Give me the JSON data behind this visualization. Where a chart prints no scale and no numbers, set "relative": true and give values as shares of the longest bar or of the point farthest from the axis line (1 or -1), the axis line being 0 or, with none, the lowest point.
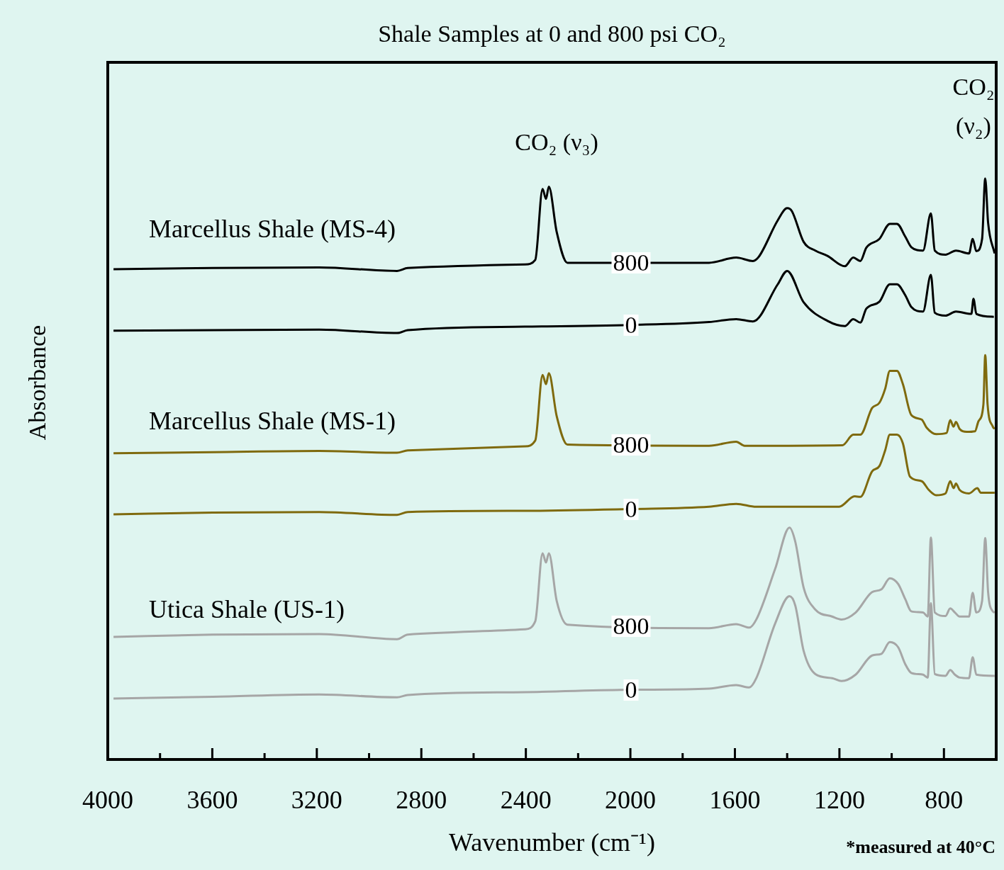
{
  "chart_data": {
    "type": "line",
    "title": "Shale Samples at 0 and 800 psi CO₂",
    "xlabel": "Wavenumber (cm⁻¹)",
    "ylabel": "Absorbance",
    "relative": true,
    "xlim": [
      4000,
      600
    ],
    "xticks": [
      4000,
      {
        "value": 3800,
        "label": null
      },
      3600,
      {
        "value": 3400,
        "label": null
      },
      3200,
      {
        "value": 3000,
        "label": null
      },
      2800,
      {
        "value": 2600,
        "label": null
      },
      2400,
      {
        "value": 2200,
        "label": null
      },
      2000,
      {
        "value": 1800,
        "label": null
      },
      1600,
      {
        "value": 1400,
        "label": null
      },
      1200,
      {
        "value": 1000,
        "label": null
      },
      800
    ],
    "tick_labels": "x",
    "series": [
      {
        "name": "800",
        "color": "#000000",
        "x": [
          3978,
          3598,
          3191,
          2893,
          2852,
          2404,
          2364,
          2336,
          2323,
          2312,
          2282,
          2241,
          1699,
          1595,
          1531,
          1509,
          1436,
          1400,
          1382,
          1337,
          1292,
          1246,
          1179,
          1147,
          1120,
          1097,
          1047,
          1007,
          980,
          948,
          925,
          880,
          850,
          835,
          794,
          754,
          704,
          690,
          676,
          654,
          642,
          631,
          606
        ],
        "values": [
          0.844,
          0.846,
          0.847,
          0.841,
          0.846,
          0.852,
          0.86,
          0.982,
          0.965,
          0.986,
          0.908,
          0.855,
          0.855,
          0.864,
          0.858,
          0.865,
          0.928,
          0.949,
          0.944,
          0.891,
          0.876,
          0.867,
          0.849,
          0.864,
          0.858,
          0.881,
          0.896,
          0.922,
          0.922,
          0.9,
          0.882,
          0.876,
          0.94,
          0.876,
          0.869,
          0.876,
          0.871,
          0.896,
          0.875,
          0.896,
          1,
          0.924,
          0.871
        ]
      },
      {
        "name": "0",
        "color": "#000000",
        "x": [
          3978,
          3598,
          3191,
          2893,
          2852,
          2404,
          1997,
          1699,
          1595,
          1531,
          1436,
          1400,
          1337,
          1246,
          1179,
          1147,
          1120,
          1097,
          1047,
          1007,
          980,
          948,
          925,
          880,
          850,
          835,
          794,
          754,
          695,
          687,
          676,
          609
        ],
        "values": [
          0.738,
          0.739,
          0.74,
          0.734,
          0.739,
          0.745,
          0.748,
          0.753,
          0.758,
          0.754,
          0.818,
          0.841,
          0.787,
          0.755,
          0.746,
          0.758,
          0.752,
          0.776,
          0.788,
          0.818,
          0.818,
          0.799,
          0.779,
          0.771,
          0.834,
          0.769,
          0.764,
          0.771,
          0.767,
          0.793,
          0.767,
          0.762
        ]
      },
      {
        "name": "800",
        "color": "#7f6a0e",
        "x": [
          3978,
          3598,
          3191,
          2893,
          2852,
          2404,
          2364,
          2336,
          2323,
          2312,
          2282,
          2241,
          1699,
          1595,
          1563,
          1188,
          1147,
          1120,
          1075,
          1047,
          1025,
          1007,
          980,
          957,
          925,
          885,
          866,
          830,
          790,
          776,
          763,
          754,
          740,
          713,
          681,
          668,
          649,
          642,
          633,
          613,
          606
        ],
        "values": [
          0.527,
          0.529,
          0.531,
          0.528,
          0.532,
          0.539,
          0.549,
          0.662,
          0.646,
          0.665,
          0.591,
          0.542,
          0.54,
          0.547,
          0.54,
          0.541,
          0.559,
          0.559,
          0.605,
          0.614,
          0.638,
          0.669,
          0.669,
          0.646,
          0.593,
          0.585,
          0.571,
          0.56,
          0.562,
          0.584,
          0.573,
          0.581,
          0.569,
          0.564,
          0.565,
          0.582,
          0.611,
          0.696,
          0.611,
          0.573,
          0.569
        ]
      },
      {
        "name": "0",
        "color": "#7f6a0e",
        "x": [
          3978,
          3598,
          3191,
          2893,
          2852,
          2404,
          1997,
          1699,
          1595,
          1518,
          1201,
          1142,
          1120,
          1075,
          1047,
          1025,
          1007,
          980,
          957,
          930,
          885,
          858,
          830,
          794,
          776,
          763,
          754,
          740,
          704,
          672,
          659,
          606
        ],
        "values": [
          0.422,
          0.425,
          0.426,
          0.421,
          0.426,
          0.428,
          0.431,
          0.435,
          0.44,
          0.435,
          0.435,
          0.453,
          0.452,
          0.496,
          0.505,
          0.532,
          0.559,
          0.559,
          0.544,
          0.487,
          0.479,
          0.464,
          0.455,
          0.458,
          0.479,
          0.467,
          0.475,
          0.464,
          0.458,
          0.467,
          0.459,
          0.459
        ]
      },
      {
        "name": "800",
        "color": "#a6a6a6",
        "x": [
          3978,
          3598,
          3191,
          2893,
          2852,
          2404,
          2364,
          2336,
          2323,
          2312,
          2282,
          2241,
          1699,
          1595,
          1545,
          1518,
          1446,
          1391,
          1369,
          1337,
          1292,
          1228,
          1192,
          1138,
          1075,
          1039,
          1007,
          975,
          948,
          925,
          880,
          862,
          850,
          835,
          794,
          776,
          758,
          740,
          704,
          690,
          676,
          654,
          642,
          631,
          613,
          606
        ],
        "values": [
          0.211,
          0.215,
          0.216,
          0.207,
          0.215,
          0.224,
          0.238,
          0.355,
          0.339,
          0.355,
          0.273,
          0.232,
          0.226,
          0.233,
          0.227,
          0.241,
          0.328,
          0.399,
          0.375,
          0.296,
          0.258,
          0.246,
          0.241,
          0.253,
          0.288,
          0.293,
          0.312,
          0.302,
          0.276,
          0.255,
          0.253,
          0.246,
          0.382,
          0.253,
          0.247,
          0.26,
          0.253,
          0.246,
          0.246,
          0.287,
          0.253,
          0.273,
          0.381,
          0.288,
          0.255,
          0.253
        ]
      },
      {
        "name": "0",
        "color": "#a6a6a6",
        "x": [
          3978,
          3598,
          3191,
          2893,
          2852,
          2404,
          1997,
          1699,
          1595,
          1545,
          1518,
          1446,
          1391,
          1369,
          1337,
          1292,
          1228,
          1192,
          1138,
          1075,
          1039,
          1007,
          975,
          948,
          925,
          880,
          862,
          850,
          835,
          794,
          776,
          758,
          740,
          704,
          690,
          676,
          606
        ],
        "values": [
          0.105,
          0.108,
          0.112,
          0.107,
          0.111,
          0.116,
          0.12,
          0.122,
          0.128,
          0.124,
          0.14,
          0.234,
          0.281,
          0.265,
          0.187,
          0.147,
          0.14,
          0.135,
          0.146,
          0.179,
          0.182,
          0.202,
          0.193,
          0.164,
          0.149,
          0.146,
          0.141,
          0.269,
          0.147,
          0.144,
          0.154,
          0.146,
          0.141,
          0.14,
          0.176,
          0.146,
          0.144
        ]
      }
    ],
    "annotations": [
      "Marcellus Shale (MS-4)",
      "Marcellus Shale (MS-1)",
      "Utica Shale (US-1)",
      "CO₂ (ν₃)",
      "CO₂ (ν₂)",
      "*measured at 40°C"
    ]
  }
}
